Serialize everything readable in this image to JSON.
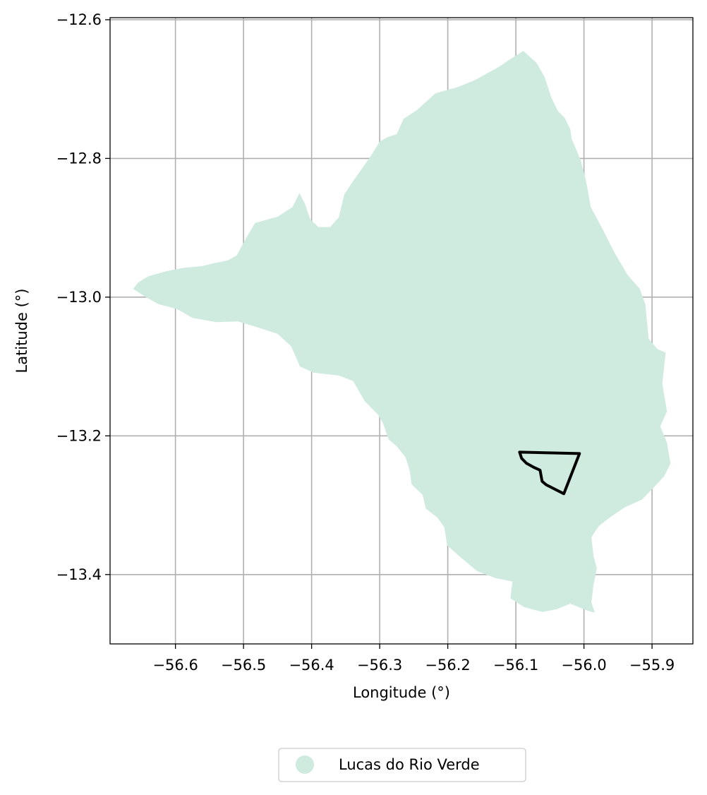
{
  "chart_data": {
    "type": "map",
    "title": "",
    "xlabel": "Longitude (°)",
    "ylabel": "Latitude (°)",
    "xlim": [
      -56.696,
      -55.84
    ],
    "ylim": [
      -13.5,
      -12.597
    ],
    "x_ticks": [
      {
        "value": -56.6,
        "label": "−56.6"
      },
      {
        "value": -56.5,
        "label": "−56.5"
      },
      {
        "value": -56.4,
        "label": "−56.4"
      },
      {
        "value": -56.3,
        "label": "−56.3"
      },
      {
        "value": -56.2,
        "label": "−56.2"
      },
      {
        "value": -56.1,
        "label": "−56.1"
      },
      {
        "value": -56.0,
        "label": "−56.0"
      },
      {
        "value": -55.9,
        "label": "−55.9"
      }
    ],
    "y_ticks": [
      {
        "value": -12.6,
        "label": "−12.6"
      },
      {
        "value": -12.8,
        "label": "−12.8"
      },
      {
        "value": -13.0,
        "label": "−13.0"
      },
      {
        "value": -13.2,
        "label": "−13.2"
      },
      {
        "value": -13.4,
        "label": "−13.4"
      }
    ],
    "grid": true,
    "legend_position": "bottom-center",
    "legend": [
      {
        "label": "Lucas do Rio Verde",
        "color": "#cfebdf"
      }
    ],
    "municipality": {
      "name": "Lucas do Rio Verde",
      "fill": "#cfebdf",
      "boundary": [
        [
          -56.662,
          -12.988
        ],
        [
          -56.655,
          -12.979
        ],
        [
          -56.64,
          -12.97
        ],
        [
          -56.615,
          -12.963
        ],
        [
          -56.59,
          -12.958
        ],
        [
          -56.56,
          -12.955
        ],
        [
          -56.543,
          -12.951
        ],
        [
          -56.523,
          -12.947
        ],
        [
          -56.51,
          -12.94
        ],
        [
          -56.498,
          -12.918
        ],
        [
          -56.483,
          -12.893
        ],
        [
          -56.45,
          -12.884
        ],
        [
          -56.428,
          -12.87
        ],
        [
          -56.418,
          -12.85
        ],
        [
          -56.41,
          -12.865
        ],
        [
          -56.402,
          -12.888
        ],
        [
          -56.39,
          -12.899
        ],
        [
          -56.373,
          -12.899
        ],
        [
          -56.36,
          -12.885
        ],
        [
          -56.352,
          -12.852
        ],
        [
          -56.34,
          -12.834
        ],
        [
          -56.327,
          -12.816
        ],
        [
          -56.312,
          -12.795
        ],
        [
          -56.3,
          -12.776
        ],
        [
          -56.29,
          -12.77
        ],
        [
          -56.275,
          -12.765
        ],
        [
          -56.265,
          -12.743
        ],
        [
          -56.245,
          -12.73
        ],
        [
          -56.218,
          -12.706
        ],
        [
          -56.185,
          -12.697
        ],
        [
          -56.16,
          -12.687
        ],
        [
          -56.125,
          -12.668
        ],
        [
          -56.11,
          -12.658
        ],
        [
          -56.089,
          -12.645
        ],
        [
          -56.07,
          -12.662
        ],
        [
          -56.058,
          -12.682
        ],
        [
          -56.048,
          -12.712
        ],
        [
          -56.038,
          -12.732
        ],
        [
          -56.028,
          -12.742
        ],
        [
          -56.02,
          -12.758
        ],
        [
          -56.018,
          -12.772
        ],
        [
          -56.005,
          -12.802
        ],
        [
          -55.997,
          -12.832
        ],
        [
          -55.99,
          -12.87
        ],
        [
          -55.972,
          -12.903
        ],
        [
          -55.955,
          -12.936
        ],
        [
          -55.936,
          -12.968
        ],
        [
          -55.918,
          -12.988
        ],
        [
          -55.91,
          -13.01
        ],
        [
          -55.905,
          -13.06
        ],
        [
          -55.892,
          -13.075
        ],
        [
          -55.88,
          -13.08
        ],
        [
          -55.885,
          -13.125
        ],
        [
          -55.878,
          -13.165
        ],
        [
          -55.888,
          -13.186
        ],
        [
          -55.878,
          -13.21
        ],
        [
          -55.873,
          -13.24
        ],
        [
          -55.882,
          -13.258
        ],
        [
          -55.898,
          -13.275
        ],
        [
          -55.915,
          -13.292
        ],
        [
          -55.94,
          -13.303
        ],
        [
          -55.961,
          -13.317
        ],
        [
          -55.978,
          -13.33
        ],
        [
          -55.989,
          -13.346
        ],
        [
          -55.986,
          -13.373
        ],
        [
          -55.981,
          -13.391
        ],
        [
          -55.986,
          -13.415
        ],
        [
          -55.989,
          -13.44
        ],
        [
          -55.984,
          -13.455
        ],
        [
          -55.995,
          -13.452
        ],
        [
          -56.02,
          -13.442
        ],
        [
          -56.04,
          -13.45
        ],
        [
          -56.061,
          -13.454
        ],
        [
          -56.088,
          -13.447
        ],
        [
          -56.108,
          -13.434
        ],
        [
          -56.105,
          -13.41
        ],
        [
          -56.13,
          -13.405
        ],
        [
          -56.157,
          -13.395
        ],
        [
          -56.18,
          -13.376
        ],
        [
          -56.201,
          -13.358
        ],
        [
          -56.205,
          -13.332
        ],
        [
          -56.215,
          -13.318
        ],
        [
          -56.232,
          -13.305
        ],
        [
          -56.237,
          -13.285
        ],
        [
          -56.253,
          -13.27
        ],
        [
          -56.256,
          -13.25
        ],
        [
          -56.262,
          -13.231
        ],
        [
          -56.275,
          -13.215
        ],
        [
          -56.287,
          -13.205
        ],
        [
          -56.295,
          -13.182
        ],
        [
          -56.302,
          -13.17
        ],
        [
          -56.322,
          -13.15
        ],
        [
          -56.339,
          -13.121
        ],
        [
          -56.36,
          -13.113
        ],
        [
          -56.397,
          -13.109
        ],
        [
          -56.417,
          -13.1
        ],
        [
          -56.43,
          -13.071
        ],
        [
          -56.45,
          -13.053
        ],
        [
          -56.478,
          -13.044
        ],
        [
          -56.508,
          -13.035
        ],
        [
          -56.54,
          -13.036
        ],
        [
          -56.575,
          -13.03
        ],
        [
          -56.598,
          -13.017
        ],
        [
          -56.625,
          -13.01
        ],
        [
          -56.645,
          -12.999
        ]
      ]
    },
    "highlight_area": {
      "stroke": "#000000",
      "boundary": [
        [
          -56.0945,
          -13.2235
        ],
        [
          -56.0065,
          -13.2255
        ],
        [
          -56.0295,
          -13.2835
        ],
        [
          -56.0555,
          -13.2705
        ],
        [
          -56.0615,
          -13.2655
        ],
        [
          -56.0645,
          -13.2495
        ],
        [
          -56.0735,
          -13.2455
        ],
        [
          -56.0845,
          -13.2395
        ],
        [
          -56.0915,
          -13.2325
        ]
      ]
    }
  }
}
